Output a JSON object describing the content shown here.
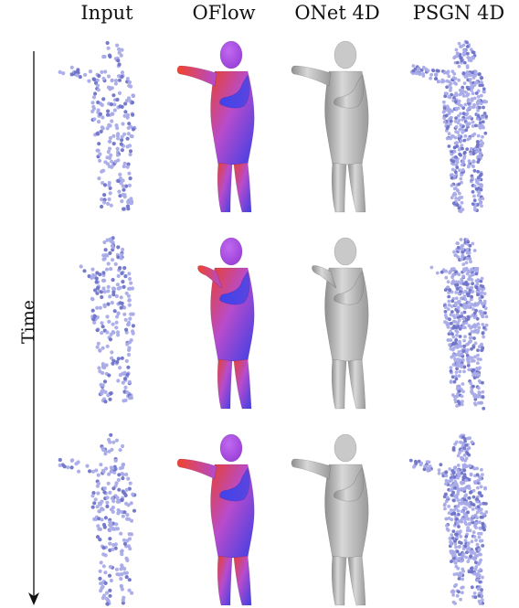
{
  "figure": {
    "columns": [
      "Input",
      "OFlow",
      "ONet 4D",
      "PSGN 4D"
    ],
    "time_label": "Time",
    "colors": {
      "point_cloud": "#a9abe8",
      "point_cloud_dark": "#6f74c9",
      "oflow_warm": "#e8402e",
      "oflow_mid": "#b84ccc",
      "oflow_cool": "#3b3fe6",
      "onet_gray": "#bdbdbd"
    },
    "rows": [
      {
        "time_step": 1,
        "pose": "arm-extended"
      },
      {
        "time_step": 2,
        "pose": "arm-folded"
      },
      {
        "time_step": 3,
        "pose": "arm-extended"
      }
    ]
  }
}
